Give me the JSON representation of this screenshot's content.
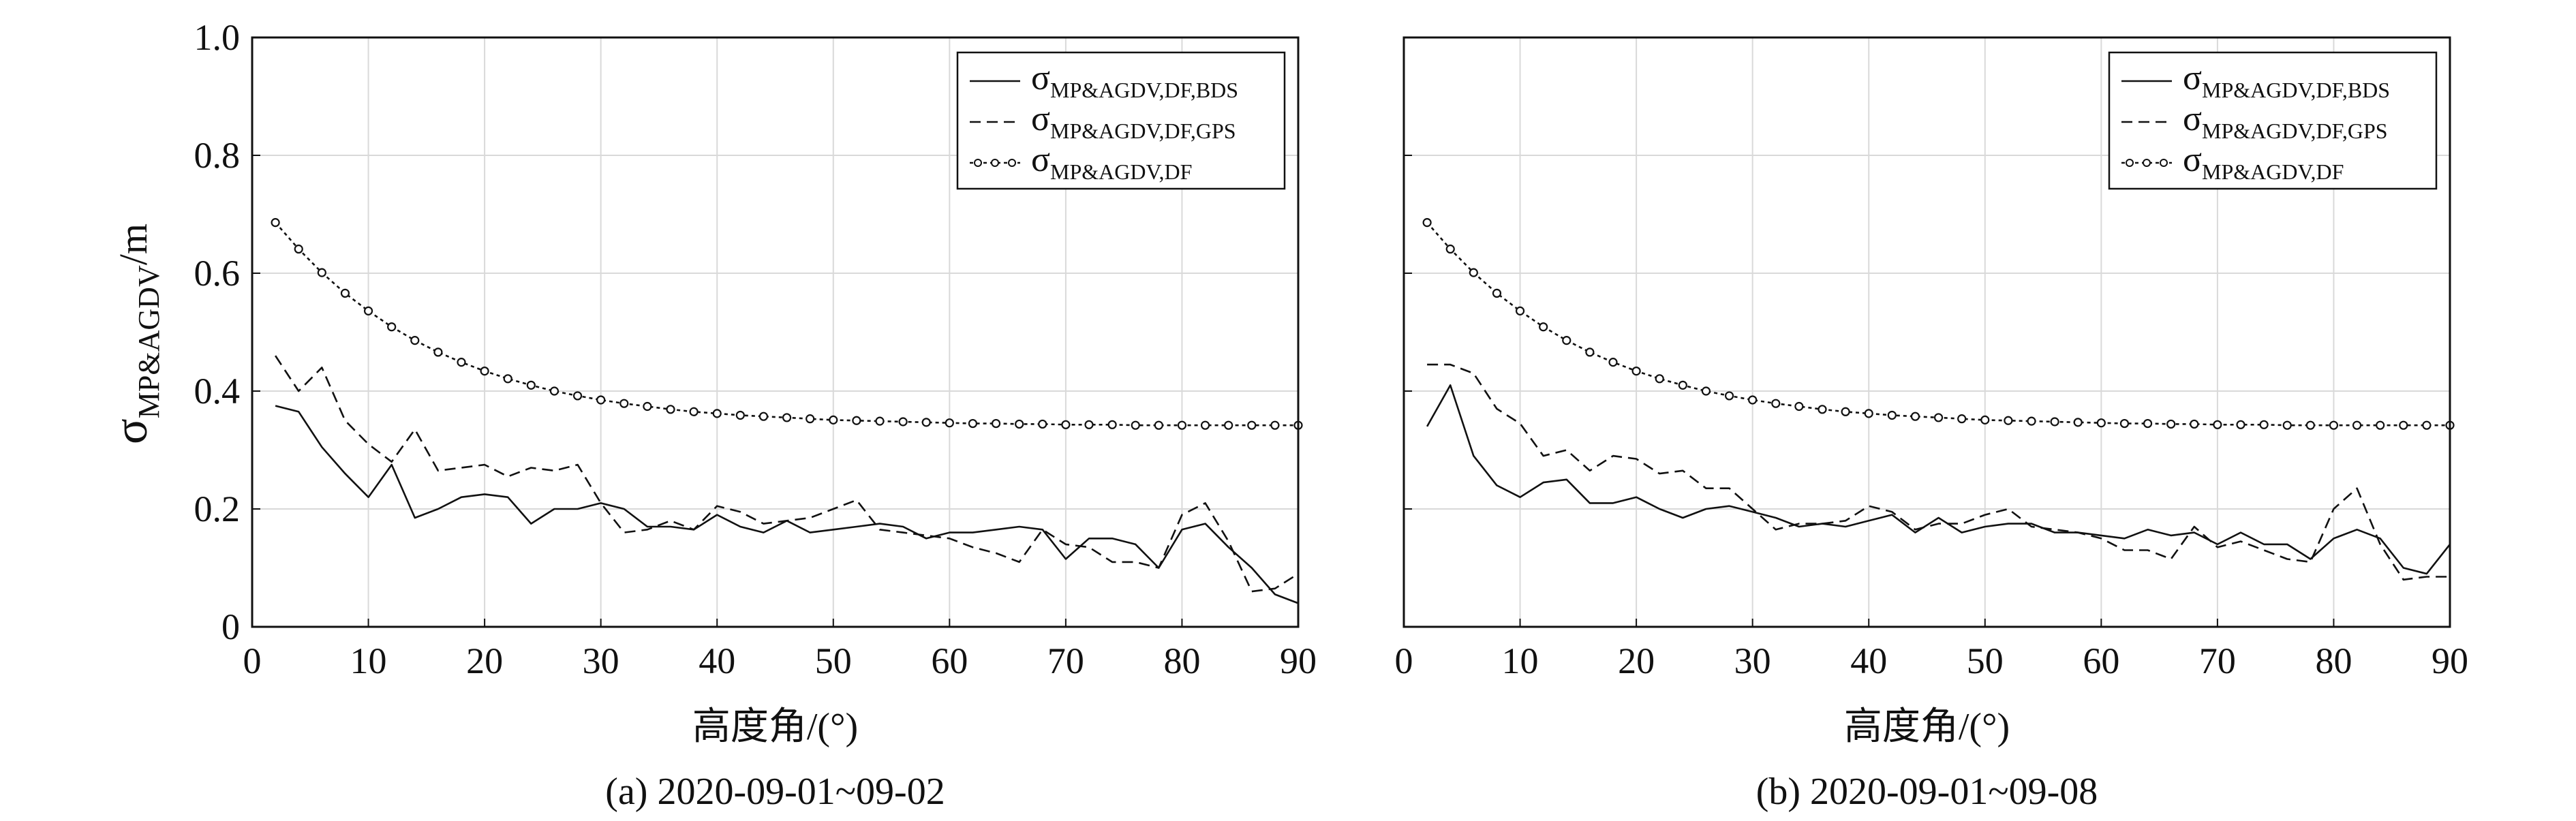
{
  "figure": {
    "ylabel_main": "σ",
    "ylabel_sub": "MP&AGDV",
    "ylabel_unit": "/m"
  },
  "chart_data": [
    {
      "type": "line",
      "caption": "(a) 2020-09-01~09-02",
      "xlabel": "高度角/(°)",
      "xlim": [
        0,
        90
      ],
      "ylim": [
        0,
        1.0
      ],
      "xticks": [
        "0",
        "10",
        "20",
        "30",
        "40",
        "50",
        "60",
        "70",
        "80",
        "90"
      ],
      "yticks": [
        "0",
        "0.2",
        "0.4",
        "0.6",
        "0.8",
        "1.0"
      ],
      "grid": true,
      "legend_position": "top-right",
      "x": [
        2,
        4,
        6,
        8,
        10,
        12,
        14,
        16,
        18,
        20,
        22,
        24,
        26,
        28,
        30,
        32,
        34,
        36,
        38,
        40,
        42,
        44,
        46,
        48,
        50,
        52,
        54,
        56,
        58,
        60,
        62,
        64,
        66,
        68,
        70,
        72,
        74,
        76,
        78,
        80,
        82,
        84,
        86,
        88,
        90
      ],
      "series": [
        {
          "name": "σ MP&AGDV,DF,BDS",
          "legend_main": "σ",
          "legend_sub": "MP&AGDV,DF,BDS",
          "style": "solid",
          "values": [
            0.375,
            0.365,
            0.305,
            0.26,
            0.22,
            0.275,
            0.185,
            0.2,
            0.22,
            0.225,
            0.22,
            0.175,
            0.2,
            0.2,
            0.21,
            0.2,
            0.17,
            0.17,
            0.165,
            0.19,
            0.17,
            0.16,
            0.18,
            0.16,
            0.165,
            0.17,
            0.175,
            0.17,
            0.15,
            0.16,
            0.16,
            0.165,
            0.17,
            0.165,
            0.115,
            0.15,
            0.15,
            0.14,
            0.1,
            0.165,
            0.175,
            0.135,
            0.1,
            0.055,
            0.04
          ]
        },
        {
          "name": "σ MP&AGDV,DF,GPS",
          "legend_main": "σ",
          "legend_sub": "MP&AGDV,DF,GPS",
          "style": "dashed",
          "values": [
            0.46,
            0.4,
            0.44,
            0.35,
            0.31,
            0.28,
            0.335,
            0.265,
            0.27,
            0.275,
            0.255,
            0.27,
            0.265,
            0.275,
            0.21,
            0.16,
            0.165,
            0.18,
            0.165,
            0.205,
            0.195,
            0.175,
            0.18,
            0.185,
            0.2,
            0.215,
            0.165,
            0.16,
            0.155,
            0.15,
            0.135,
            0.125,
            0.11,
            0.165,
            0.14,
            0.135,
            0.11,
            0.11,
            0.1,
            0.19,
            0.21,
            0.145,
            0.06,
            0.065,
            0.09
          ]
        },
        {
          "name": "σ MP&AGDV,DF",
          "legend_main": "σ",
          "legend_sub": "MP&AGDV,DF",
          "style": "dotted-circle",
          "values": [
            0.686,
            0.641,
            0.601,
            0.566,
            0.536,
            0.509,
            0.486,
            0.466,
            0.449,
            0.434,
            0.421,
            0.41,
            0.4,
            0.392,
            0.385,
            0.379,
            0.374,
            0.369,
            0.365,
            0.362,
            0.359,
            0.357,
            0.355,
            0.353,
            0.351,
            0.35,
            0.349,
            0.348,
            0.347,
            0.346,
            0.345,
            0.345,
            0.344,
            0.344,
            0.343,
            0.343,
            0.343,
            0.342,
            0.342,
            0.342,
            0.342,
            0.342,
            0.342,
            0.342,
            0.342
          ]
        }
      ]
    },
    {
      "type": "line",
      "caption": "(b) 2020-09-01~09-08",
      "xlabel": "高度角/(°)",
      "xlim": [
        0,
        90
      ],
      "ylim": [
        0,
        1.0
      ],
      "xticks": [
        "0",
        "10",
        "20",
        "30",
        "40",
        "50",
        "60",
        "70",
        "80",
        "90"
      ],
      "yticks": [
        "0",
        "0.2",
        "0.4",
        "0.6",
        "0.8",
        "1.0"
      ],
      "grid": true,
      "legend_position": "top-right",
      "x": [
        2,
        4,
        6,
        8,
        10,
        12,
        14,
        16,
        18,
        20,
        22,
        24,
        26,
        28,
        30,
        32,
        34,
        36,
        38,
        40,
        42,
        44,
        46,
        48,
        50,
        52,
        54,
        56,
        58,
        60,
        62,
        64,
        66,
        68,
        70,
        72,
        74,
        76,
        78,
        80,
        82,
        84,
        86,
        88,
        90
      ],
      "series": [
        {
          "name": "σ MP&AGDV,DF,BDS",
          "legend_main": "σ",
          "legend_sub": "MP&AGDV,DF,BDS",
          "style": "solid",
          "values": [
            0.34,
            0.41,
            0.29,
            0.24,
            0.22,
            0.245,
            0.25,
            0.21,
            0.21,
            0.22,
            0.2,
            0.185,
            0.2,
            0.205,
            0.195,
            0.185,
            0.17,
            0.175,
            0.17,
            0.18,
            0.19,
            0.16,
            0.185,
            0.16,
            0.17,
            0.175,
            0.175,
            0.16,
            0.16,
            0.155,
            0.15,
            0.165,
            0.155,
            0.16,
            0.14,
            0.16,
            0.14,
            0.14,
            0.115,
            0.15,
            0.165,
            0.15,
            0.1,
            0.09,
            0.14
          ]
        },
        {
          "name": "σ MP&AGDV,DF,GPS",
          "legend_main": "σ",
          "legend_sub": "MP&AGDV,DF,GPS",
          "style": "dashed",
          "values": [
            0.445,
            0.445,
            0.43,
            0.37,
            0.345,
            0.29,
            0.3,
            0.265,
            0.29,
            0.285,
            0.26,
            0.265,
            0.235,
            0.235,
            0.2,
            0.165,
            0.175,
            0.175,
            0.18,
            0.205,
            0.195,
            0.165,
            0.175,
            0.175,
            0.19,
            0.2,
            0.17,
            0.165,
            0.16,
            0.15,
            0.13,
            0.13,
            0.115,
            0.17,
            0.135,
            0.145,
            0.13,
            0.115,
            0.11,
            0.2,
            0.235,
            0.14,
            0.08,
            0.085,
            0.085
          ]
        },
        {
          "name": "σ MP&AGDV,DF",
          "legend_main": "σ",
          "legend_sub": "MP&AGDV,DF",
          "style": "dotted-circle",
          "values": [
            0.686,
            0.641,
            0.601,
            0.566,
            0.536,
            0.509,
            0.486,
            0.466,
            0.449,
            0.434,
            0.421,
            0.41,
            0.4,
            0.392,
            0.385,
            0.379,
            0.374,
            0.369,
            0.365,
            0.362,
            0.359,
            0.357,
            0.355,
            0.353,
            0.351,
            0.35,
            0.349,
            0.348,
            0.347,
            0.346,
            0.345,
            0.345,
            0.344,
            0.344,
            0.343,
            0.343,
            0.343,
            0.342,
            0.342,
            0.342,
            0.342,
            0.342,
            0.342,
            0.342,
            0.342
          ]
        }
      ]
    }
  ]
}
